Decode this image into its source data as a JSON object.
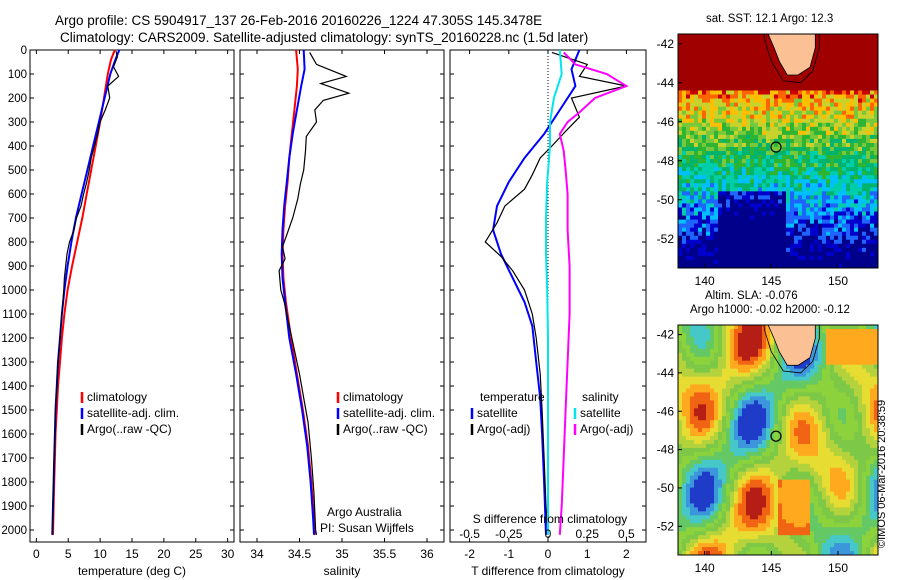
{
  "header": {
    "line1": "Argo profile: CS 5904917_137 26-Feb-2016 20160226_1224 47.305S 145.3478E",
    "line2": "Climatology: CARS2009. Satellite-adjusted climatology: synTS_20160228.nc (1.5d later)"
  },
  "colors": {
    "climatology": "#ff0000",
    "satellite": "#0000ff",
    "argo": "#000000",
    "temp_diff": "#00e5ee",
    "sal_diff": "#ff00ff"
  },
  "shared_depth_axis": {
    "ticks": [
      "0",
      "100",
      "200",
      "300",
      "400",
      "500",
      "600",
      "700",
      "800",
      "900",
      "1000",
      "1100",
      "1200",
      "1300",
      "1400",
      "1500",
      "1600",
      "1700",
      "1800",
      "1900",
      "2000"
    ]
  },
  "notes": {
    "argo_australia": "Argo Australia",
    "pi": "PI: Susan Wijffels"
  },
  "chart_data": [
    {
      "type": "line",
      "xlabel": "temperature (deg C)",
      "ylabel": "",
      "xlim": [
        -1,
        31
      ],
      "ylim": [
        2050,
        0
      ],
      "xticks": [
        "0",
        "5",
        "10",
        "15",
        "20",
        "25",
        "30"
      ],
      "legend": [
        "climatology",
        "satellite-adj. clim.",
        "Argo(..raw -QC)"
      ],
      "series": [
        {
          "name": "climatology",
          "values": [
            [
              12.3,
              0
            ],
            [
              11.7,
              40
            ],
            [
              11.2,
              100
            ],
            [
              10.6,
              200
            ],
            [
              10.0,
              300
            ],
            [
              9.3,
              400
            ],
            [
              8.6,
              500
            ],
            [
              7.9,
              600
            ],
            [
              7.2,
              700
            ],
            [
              6.4,
              800
            ],
            [
              5.6,
              900
            ],
            [
              4.9,
              1000
            ],
            [
              4.4,
              1100
            ],
            [
              4.0,
              1200
            ],
            [
              3.7,
              1300
            ],
            [
              3.4,
              1400
            ],
            [
              3.2,
              1500
            ],
            [
              3.0,
              1600
            ],
            [
              2.9,
              1700
            ],
            [
              2.8,
              1800
            ],
            [
              2.7,
              1900
            ],
            [
              2.6,
              2020
            ]
          ]
        },
        {
          "name": "satellite-adj. clim.",
          "values": [
            [
              13.0,
              0
            ],
            [
              12.4,
              40
            ],
            [
              11.6,
              100
            ],
            [
              10.7,
              200
            ],
            [
              9.8,
              300
            ],
            [
              8.9,
              400
            ],
            [
              8.0,
              500
            ],
            [
              7.1,
              600
            ],
            [
              6.2,
              700
            ],
            [
              5.5,
              800
            ],
            [
              4.9,
              900
            ],
            [
              4.4,
              1000
            ],
            [
              4.0,
              1100
            ],
            [
              3.7,
              1200
            ],
            [
              3.4,
              1300
            ],
            [
              3.2,
              1400
            ],
            [
              3.0,
              1500
            ],
            [
              2.9,
              1600
            ],
            [
              2.8,
              1700
            ],
            [
              2.7,
              1800
            ],
            [
              2.6,
              1900
            ],
            [
              2.5,
              2020
            ]
          ]
        },
        {
          "name": "Argo(..raw -QC)",
          "values": [
            [
              12.5,
              5
            ],
            [
              12.7,
              30
            ],
            [
              12.1,
              70
            ],
            [
              12.9,
              110
            ],
            [
              11.2,
              150
            ],
            [
              11.5,
              200
            ],
            [
              10.8,
              250
            ],
            [
              10.0,
              300
            ],
            [
              9.6,
              350
            ],
            [
              9.1,
              400
            ],
            [
              8.6,
              450
            ],
            [
              8.3,
              500
            ],
            [
              7.9,
              550
            ],
            [
              7.4,
              600
            ],
            [
              7.0,
              650
            ],
            [
              6.3,
              700
            ],
            [
              5.9,
              750
            ],
            [
              5.2,
              800
            ],
            [
              4.8,
              850
            ],
            [
              4.6,
              900
            ],
            [
              4.4,
              950
            ],
            [
              4.3,
              1000
            ],
            [
              4.0,
              1100
            ],
            [
              3.7,
              1200
            ],
            [
              3.4,
              1300
            ],
            [
              3.2,
              1400
            ],
            [
              3.0,
              1500
            ],
            [
              2.9,
              1600
            ],
            [
              2.8,
              1700
            ],
            [
              2.7,
              1800
            ],
            [
              2.6,
              1900
            ],
            [
              2.5,
              2020
            ]
          ]
        }
      ]
    },
    {
      "type": "line",
      "xlabel": "salinity",
      "xlim": [
        33.8,
        36.2
      ],
      "ylim": [
        2050,
        0
      ],
      "xticks": [
        "34",
        "34.5",
        "35",
        "35.5",
        "36"
      ],
      "legend": [
        "climatology",
        "satellite-adj. clim.",
        "Argo(..raw -QC)"
      ],
      "series": [
        {
          "name": "climatology",
          "values": [
            [
              34.46,
              0
            ],
            [
              34.48,
              80
            ],
            [
              34.47,
              150
            ],
            [
              34.44,
              250
            ],
            [
              34.41,
              350
            ],
            [
              34.38,
              450
            ],
            [
              34.36,
              550
            ],
            [
              34.33,
              650
            ],
            [
              34.31,
              750
            ],
            [
              34.3,
              850
            ],
            [
              34.31,
              950
            ],
            [
              34.34,
              1050
            ],
            [
              34.4,
              1200
            ],
            [
              34.47,
              1350
            ],
            [
              34.54,
              1500
            ],
            [
              34.6,
              1650
            ],
            [
              34.64,
              1800
            ],
            [
              34.67,
              1950
            ],
            [
              34.68,
              2020
            ]
          ]
        },
        {
          "name": "satellite-adj. clim.",
          "values": [
            [
              34.55,
              0
            ],
            [
              34.56,
              80
            ],
            [
              34.52,
              150
            ],
            [
              34.47,
              250
            ],
            [
              34.42,
              350
            ],
            [
              34.38,
              450
            ],
            [
              34.35,
              550
            ],
            [
              34.32,
              650
            ],
            [
              34.3,
              750
            ],
            [
              34.29,
              850
            ],
            [
              34.3,
              950
            ],
            [
              34.33,
              1050
            ],
            [
              34.38,
              1200
            ],
            [
              34.46,
              1350
            ],
            [
              34.53,
              1500
            ],
            [
              34.59,
              1650
            ],
            [
              34.63,
              1800
            ],
            [
              34.66,
              1950
            ],
            [
              34.67,
              2020
            ]
          ]
        },
        {
          "name": "Argo(..raw -QC)",
          "values": [
            [
              34.62,
              10
            ],
            [
              34.7,
              60
            ],
            [
              35.05,
              110
            ],
            [
              34.75,
              140
            ],
            [
              35.08,
              180
            ],
            [
              34.78,
              210
            ],
            [
              34.68,
              250
            ],
            [
              34.7,
              300
            ],
            [
              34.58,
              360
            ],
            [
              34.57,
              420
            ],
            [
              34.55,
              500
            ],
            [
              34.51,
              560
            ],
            [
              34.48,
              620
            ],
            [
              34.42,
              700
            ],
            [
              34.36,
              760
            ],
            [
              34.3,
              820
            ],
            [
              34.33,
              870
            ],
            [
              34.26,
              920
            ],
            [
              34.28,
              1000
            ],
            [
              34.32,
              1050
            ],
            [
              34.38,
              1150
            ],
            [
              34.44,
              1250
            ],
            [
              34.5,
              1350
            ],
            [
              34.55,
              1450
            ],
            [
              34.6,
              1550
            ],
            [
              34.64,
              1700
            ],
            [
              34.67,
              1850
            ],
            [
              34.69,
              2000
            ],
            [
              34.7,
              2020
            ]
          ]
        }
      ]
    },
    {
      "type": "line",
      "xlabel": "T difference from climatology",
      "top_axis_label": "S difference from climatology",
      "xlim": [
        -2.5,
        2.5
      ],
      "ylim": [
        2050,
        0
      ],
      "xticks": [
        "-2",
        "-1",
        "0",
        "1",
        "2"
      ],
      "s_xticks": [
        "-0.5",
        "-0.25",
        "0",
        "0.25",
        "0.5"
      ],
      "legend_temperature": {
        "heading": "temperature",
        "items": [
          "satellite",
          "Argo(-adj)"
        ]
      },
      "legend_salinity": {
        "heading": "salinity",
        "items": [
          "satellite",
          "Argo(-adj)"
        ]
      },
      "series": [
        {
          "name": "satellite",
          "values": [
            [
              0.8,
              0
            ],
            [
              0.6,
              80
            ],
            [
              0.7,
              150
            ],
            [
              0.3,
              250
            ],
            [
              -0.1,
              350
            ],
            [
              -0.6,
              450
            ],
            [
              -1.0,
              550
            ],
            [
              -1.3,
              650
            ],
            [
              -1.4,
              750
            ],
            [
              -1.2,
              850
            ],
            [
              -0.9,
              950
            ],
            [
              -0.6,
              1050
            ],
            [
              -0.4,
              1150
            ],
            [
              -0.3,
              1300
            ],
            [
              -0.2,
              1450
            ],
            [
              -0.15,
              1600
            ],
            [
              -0.1,
              1800
            ],
            [
              -0.05,
              2020
            ]
          ]
        },
        {
          "name": "Argo(-adj)",
          "values": [
            [
              0.1,
              10
            ],
            [
              1.0,
              60
            ],
            [
              0.8,
              110
            ],
            [
              2.0,
              150
            ],
            [
              0.6,
              200
            ],
            [
              0.8,
              280
            ],
            [
              0.5,
              330
            ],
            [
              0.1,
              400
            ],
            [
              -0.2,
              450
            ],
            [
              -0.4,
              520
            ],
            [
              -0.6,
              580
            ],
            [
              -1.1,
              650
            ],
            [
              -1.3,
              720
            ],
            [
              -1.6,
              800
            ],
            [
              -1.2,
              860
            ],
            [
              -0.9,
              920
            ],
            [
              -0.6,
              1000
            ],
            [
              -0.4,
              1100
            ],
            [
              -0.3,
              1200
            ],
            [
              -0.2,
              1350
            ],
            [
              -0.15,
              1500
            ],
            [
              -0.1,
              1700
            ],
            [
              -0.05,
              1900
            ],
            [
              0.0,
              2020
            ]
          ]
        },
        {
          "name": "satellite",
          "values": [
            [
              0.3,
              0
            ],
            [
              0.35,
              100
            ],
            [
              0.15,
              200
            ],
            [
              0.05,
              300
            ],
            [
              0.05,
              400
            ],
            [
              -0.02,
              550
            ],
            [
              -0.05,
              700
            ],
            [
              -0.05,
              850
            ],
            [
              -0.02,
              1000
            ],
            [
              0.0,
              1200
            ],
            [
              0.0,
              1400
            ],
            [
              0.0,
              1600
            ],
            [
              0.0,
              1800
            ],
            [
              0.0,
              2020
            ]
          ]
        },
        {
          "name": "Argo(-adj)",
          "values": [
            [
              0.4,
              10
            ],
            [
              0.7,
              60
            ],
            [
              1.5,
              100
            ],
            [
              2.0,
              150
            ],
            [
              1.2,
              200
            ],
            [
              0.8,
              260
            ],
            [
              0.5,
              300
            ],
            [
              0.3,
              350
            ],
            [
              0.4,
              420
            ],
            [
              0.45,
              500
            ],
            [
              0.5,
              600
            ],
            [
              0.5,
              750
            ],
            [
              0.55,
              900
            ],
            [
              0.55,
              1100
            ],
            [
              0.5,
              1300
            ],
            [
              0.45,
              1500
            ],
            [
              0.4,
              1700
            ],
            [
              0.35,
              1900
            ],
            [
              0.3,
              2020
            ]
          ]
        }
      ]
    },
    {
      "type": "heatmap",
      "title": "sat. SST: 12.1 Argo: 12.3",
      "xlim": [
        138,
        153
      ],
      "ylim": [
        -53.5,
        -41.5
      ],
      "xticks": [
        "140",
        "145",
        "150"
      ],
      "yticks": [
        "-42",
        "-44",
        "-46",
        "-48",
        "-50",
        "-52"
      ],
      "argo_position": {
        "lon": 145.35,
        "lat": -47.3
      }
    },
    {
      "type": "heatmap",
      "title": "Altim. SLA: -0.076",
      "subtitle": "Argo h1000: -0.02 h2000: -0.12",
      "xlim": [
        138,
        153
      ],
      "ylim": [
        -53.5,
        -41.5
      ],
      "xticks": [
        "140",
        "145",
        "150"
      ],
      "yticks": [
        "-42",
        "-44",
        "-46",
        "-48",
        "-50",
        "-52"
      ],
      "argo_position": {
        "lon": 145.35,
        "lat": -47.3
      }
    }
  ],
  "imos_stamp": "©IMOS 06-Mar-2016 20:38:59"
}
